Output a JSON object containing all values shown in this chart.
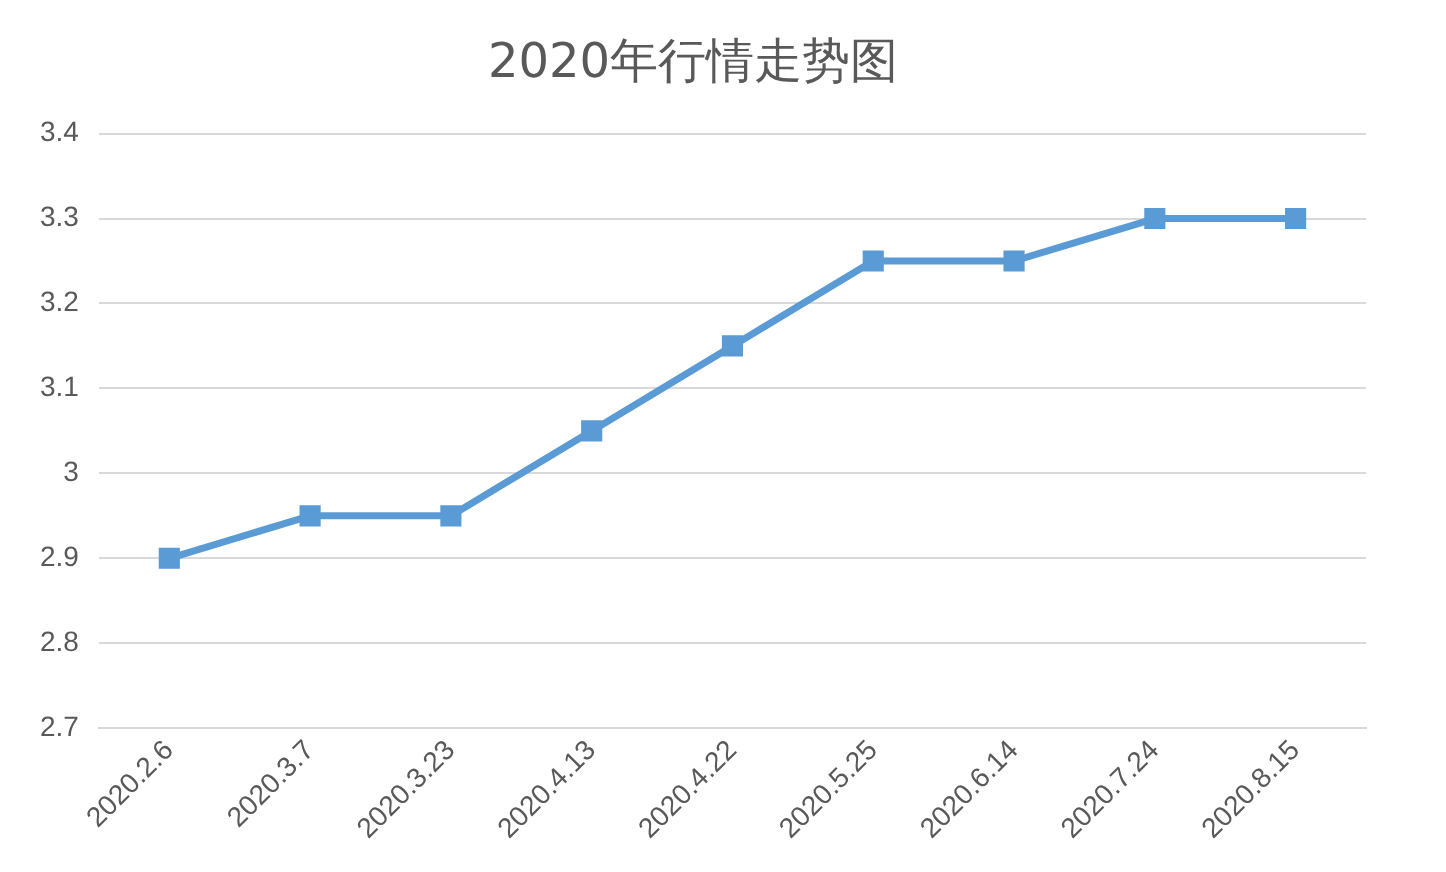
{
  "chart_data": {
    "type": "line",
    "title": "2020年行情走势图",
    "categories": [
      "2020.2.6",
      "2020.3.7",
      "2020.3.23",
      "2020.4.13",
      "2020.4.22",
      "2020.5.25",
      "2020.6.14",
      "2020.7.24",
      "2020.8.15"
    ],
    "series": [
      {
        "color": "#5b9bd5",
        "values": [
          2.9,
          2.95,
          2.95,
          3.05,
          3.15,
          3.25,
          3.25,
          3.3,
          3.3
        ]
      }
    ],
    "ylim": [
      2.7,
      3.4
    ],
    "yticks": [
      {
        "value": 2.7,
        "label": "2.7"
      },
      {
        "value": 2.8,
        "label": "2.8"
      },
      {
        "value": 2.9,
        "label": "2.9"
      },
      {
        "value": 3,
        "label": "3"
      },
      {
        "value": 3.1,
        "label": "3.1"
      },
      {
        "value": 3.2,
        "label": "3.2"
      },
      {
        "value": 3.3,
        "label": "3.3"
      },
      {
        "value": 3.4,
        "label": "3.4"
      }
    ],
    "grid": "y",
    "legend": false,
    "marker": "square",
    "line_style": "solid"
  }
}
